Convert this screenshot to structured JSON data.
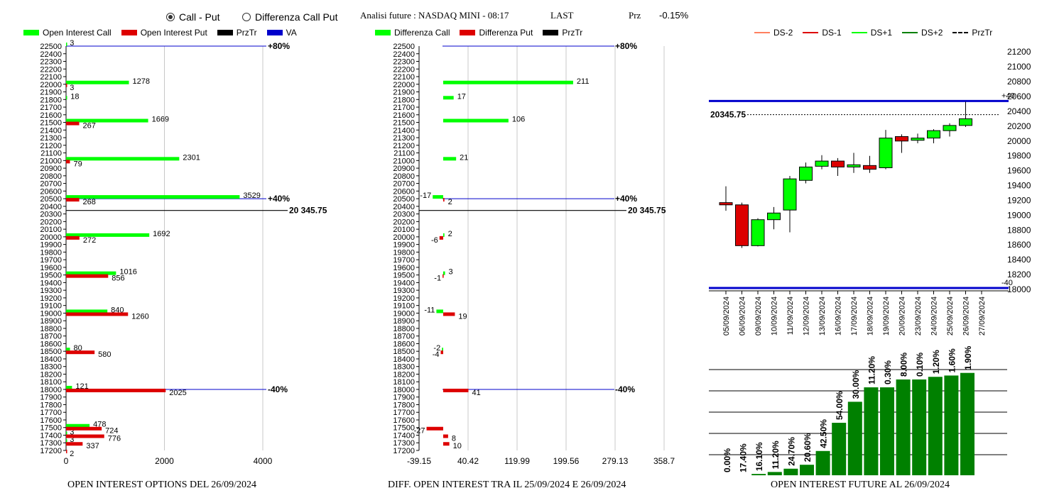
{
  "header": {
    "radio_call_put": "Call - Put",
    "radio_diff": "Differenza Call Put",
    "title": "Analisi future : NASDAQ MINI - 08:17",
    "last": "LAST",
    "prz_label": "Prz",
    "prz_value": "-0.15%"
  },
  "legend1": {
    "oi_call": "Open Interest Call",
    "oi_put": "Open Interest Put",
    "prztr": "PrzTr",
    "va": "VA"
  },
  "legend2": {
    "diff_call": "Differenza Call",
    "diff_put": "Differenza Put",
    "prztr": "PrzTr"
  },
  "legend3": {
    "ds_m2": "DS-2",
    "ds_m1": "DS-1",
    "ds_p1": "DS+1",
    "ds_p2": "DS+2",
    "prztr": "PrzTr"
  },
  "footers": {
    "left": "OPEN INTEREST OPTIONS DEL 26/09/2024",
    "middle": "DIFF. OPEN INTEREST TRA IL 25/09/2024 E 26/09/2024",
    "right": "OPEN INTEREST FUTURE AL 26/09/2024"
  },
  "colors": {
    "green": "#00ff00",
    "red": "#dd0000",
    "blue": "#0000cc",
    "darkgreen": "#008000"
  },
  "chart_data": [
    {
      "type": "bar",
      "orientation": "horizontal",
      "strike_ticks": [
        22400,
        22300,
        22200,
        22100,
        22000,
        21900,
        21800,
        21700,
        21600,
        21500,
        21400,
        21300,
        21200,
        21100,
        21000,
        20900,
        20800,
        20700,
        20600,
        20500,
        20400,
        20300,
        20200,
        20100,
        20000,
        19900,
        19800,
        19700,
        19600,
        19500,
        19400,
        19300,
        19200,
        19100,
        19000,
        18900,
        18800,
        18700,
        18600,
        18500,
        18400,
        18300,
        18200,
        18100,
        18000,
        17900,
        17800,
        17700,
        17600,
        17500,
        17400,
        17300,
        17200
      ],
      "ylim": [
        17200,
        22500
      ],
      "xlim": [
        0,
        4000
      ],
      "x_ticks": [
        0,
        2000,
        4000
      ],
      "series": [
        {
          "name": "Open Interest Call",
          "color": "#00ff00",
          "points": [
            [
              22500,
              3
            ],
            [
              22000,
              1278
            ],
            [
              21800,
              18
            ],
            [
              21500,
              1669
            ],
            [
              21000,
              2301
            ],
            [
              20500,
              3529
            ],
            [
              20000,
              1692
            ],
            [
              19500,
              1016
            ],
            [
              19000,
              840
            ],
            [
              18500,
              80
            ],
            [
              18000,
              121
            ],
            [
              17500,
              478
            ],
            [
              17400,
              3
            ],
            [
              17300,
              3
            ]
          ]
        },
        {
          "name": "Open Interest Put",
          "color": "#dd0000",
          "points": [
            [
              22000,
              3
            ],
            [
              21500,
              267
            ],
            [
              21000,
              79
            ],
            [
              20500,
              268
            ],
            [
              20000,
              272
            ],
            [
              19500,
              856
            ],
            [
              19000,
              1260
            ],
            [
              18500,
              580
            ],
            [
              18000,
              2025
            ],
            [
              17500,
              724
            ],
            [
              17400,
              776
            ],
            [
              17300,
              337
            ],
            [
              17200,
              2
            ]
          ]
        }
      ],
      "va_lines": [
        {
          "y": 22500,
          "label": "+80%"
        },
        {
          "y": 20500,
          "label": "+40%"
        },
        {
          "y": 18000,
          "label": "-40%"
        }
      ],
      "prztr": {
        "y": 20345.75,
        "label": "20 345.75"
      }
    },
    {
      "type": "bar",
      "orientation": "horizontal",
      "strike_ticks": [
        22400,
        22300,
        22200,
        22100,
        22000,
        21900,
        21800,
        21700,
        21600,
        21500,
        21400,
        21300,
        21200,
        21100,
        21000,
        20900,
        20800,
        20700,
        20600,
        20500,
        20400,
        20300,
        20200,
        20100,
        20000,
        19900,
        19800,
        19700,
        19600,
        19500,
        19400,
        19300,
        19200,
        19100,
        19000,
        18900,
        18800,
        18700,
        18600,
        18500,
        18400,
        18300,
        18200,
        18100,
        18000,
        17900,
        17800,
        17700,
        17600,
        17500,
        17400,
        17300,
        17200
      ],
      "ylim": [
        17200,
        22500
      ],
      "xlim": [
        -39.15,
        358.7
      ],
      "x_ticks": [
        "-39.15",
        "40.42",
        "119.99",
        "199.56",
        "279.13",
        "358.7"
      ],
      "series": [
        {
          "name": "Differenza Call",
          "color": "#00ff00",
          "points": [
            [
              22000,
              211
            ],
            [
              21800,
              17
            ],
            [
              21500,
              106
            ],
            [
              21000,
              21
            ],
            [
              20500,
              -17
            ],
            [
              20000,
              2
            ],
            [
              19500,
              3
            ],
            [
              19000,
              -11
            ],
            [
              18500,
              -2
            ]
          ]
        },
        {
          "name": "Differenza Put",
          "color": "#dd0000",
          "points": [
            [
              20500,
              2
            ],
            [
              20000,
              -6
            ],
            [
              19500,
              -1
            ],
            [
              19000,
              19
            ],
            [
              18500,
              -4
            ],
            [
              18000,
              41
            ],
            [
              17500,
              -27
            ],
            [
              17400,
              8
            ],
            [
              17300,
              10
            ]
          ]
        }
      ],
      "va_lines": [
        {
          "y": 22500,
          "label": "+80%"
        },
        {
          "y": 20500,
          "label": "+40%"
        },
        {
          "y": 18000,
          "label": "-40%"
        }
      ],
      "prztr": {
        "y": 20345.75,
        "label": "20 345.75"
      }
    },
    {
      "type": "candlestick",
      "dates": [
        "05/09/2024",
        "06/09/2024",
        "09/09/2024",
        "10/09/2024",
        "11/09/2024",
        "12/09/2024",
        "13/09/2024",
        "16/09/2024",
        "17/09/2024",
        "18/09/2024",
        "19/09/2024",
        "20/09/2024",
        "23/09/2024",
        "24/09/2024",
        "25/09/2024",
        "26/09/2024",
        "27/09/2024"
      ],
      "candles": [
        {
          "o": 19160,
          "c": 19130,
          "h": 19380,
          "l": 19050
        },
        {
          "o": 19130,
          "c": 18580,
          "h": 19160,
          "l": 18550
        },
        {
          "o": 18580,
          "c": 18930,
          "h": 18950,
          "l": 18570
        },
        {
          "o": 18930,
          "c": 19020,
          "h": 19100,
          "l": 18800
        },
        {
          "o": 19060,
          "c": 19480,
          "h": 19520,
          "l": 18760
        },
        {
          "o": 19460,
          "c": 19640,
          "h": 19700,
          "l": 19420
        },
        {
          "o": 19650,
          "c": 19720,
          "h": 19800,
          "l": 19610
        },
        {
          "o": 19720,
          "c": 19640,
          "h": 19760,
          "l": 19520
        },
        {
          "o": 19640,
          "c": 19670,
          "h": 19830,
          "l": 19560
        },
        {
          "o": 19660,
          "c": 19610,
          "h": 19790,
          "l": 19560
        },
        {
          "o": 19630,
          "c": 20030,
          "h": 20140,
          "l": 19610
        },
        {
          "o": 20050,
          "c": 19990,
          "h": 20080,
          "l": 19830
        },
        {
          "o": 20000,
          "c": 20030,
          "h": 20090,
          "l": 19960
        },
        {
          "o": 20030,
          "c": 20130,
          "h": 20150,
          "l": 19960
        },
        {
          "o": 20130,
          "c": 20200,
          "h": 20230,
          "l": 20050
        },
        {
          "o": 20200,
          "c": 20290,
          "h": 20520,
          "l": 20180
        }
      ],
      "y_ticks": [
        21200,
        21000,
        20800,
        20600,
        20400,
        20200,
        20000,
        19800,
        19600,
        19400,
        19200,
        19000,
        18800,
        18600,
        18400,
        18200,
        18000
      ],
      "ylim": [
        18000,
        21250
      ],
      "va_lines": [
        {
          "y": 20530,
          "label": "+40"
        },
        {
          "y": 18010,
          "label": "-40"
        }
      ],
      "prztr": {
        "y": 20345.75,
        "label": "20345.75"
      }
    },
    {
      "type": "bar",
      "categories": [
        "05/09/2024",
        "06/09/2024",
        "09/09/2024",
        "10/09/2024",
        "11/09/2024",
        "12/09/2024",
        "13/09/2024",
        "16/09/2024",
        "17/09/2024",
        "18/09/2024",
        "19/09/2024",
        "20/09/2024",
        "23/09/2024",
        "24/09/2024",
        "25/09/2024",
        "26/09/2024"
      ],
      "values": [
        0.0,
        0.0,
        1.0,
        2.5,
        5.0,
        8.0,
        18.5,
        40.0,
        56.0,
        67.0,
        67.0,
        73.0,
        73.0,
        75.0,
        76.0,
        78.0
      ],
      "labels": [
        "0.00%",
        "17.40%",
        "16.10%",
        "11.20%",
        "24.70%",
        "20.60%",
        "42.50%",
        "54.00%",
        "30.00%",
        "11.20%",
        "0.30%",
        "8.00%",
        "0.10%",
        "1.20%",
        "1.60%",
        "1.90%"
      ],
      "color": "#008000"
    }
  ]
}
